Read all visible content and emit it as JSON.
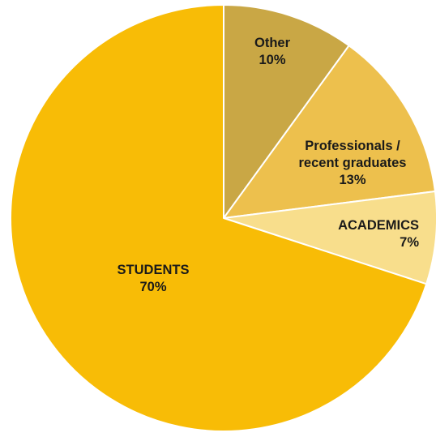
{
  "chart_data": {
    "type": "pie",
    "title": "",
    "start_angle_deg": 0,
    "direction": "clockwise",
    "slices": [
      {
        "label_lines": [
          "Other"
        ],
        "percent_label": "10%",
        "value": 10,
        "color": "#C9A745"
      },
      {
        "label_lines": [
          "Professionals /",
          "recent graduates"
        ],
        "percent_label": "13%",
        "value": 13,
        "color": "#EDC04D"
      },
      {
        "label_lines": [
          "ACADEMICS"
        ],
        "percent_label": "7%",
        "value": 7,
        "color": "#F8DE8C"
      },
      {
        "label_lines": [
          "STUDENTS"
        ],
        "percent_label": "70%",
        "value": 70,
        "color": "#F8BC06"
      }
    ],
    "slice_border_color": "#ffffff"
  }
}
